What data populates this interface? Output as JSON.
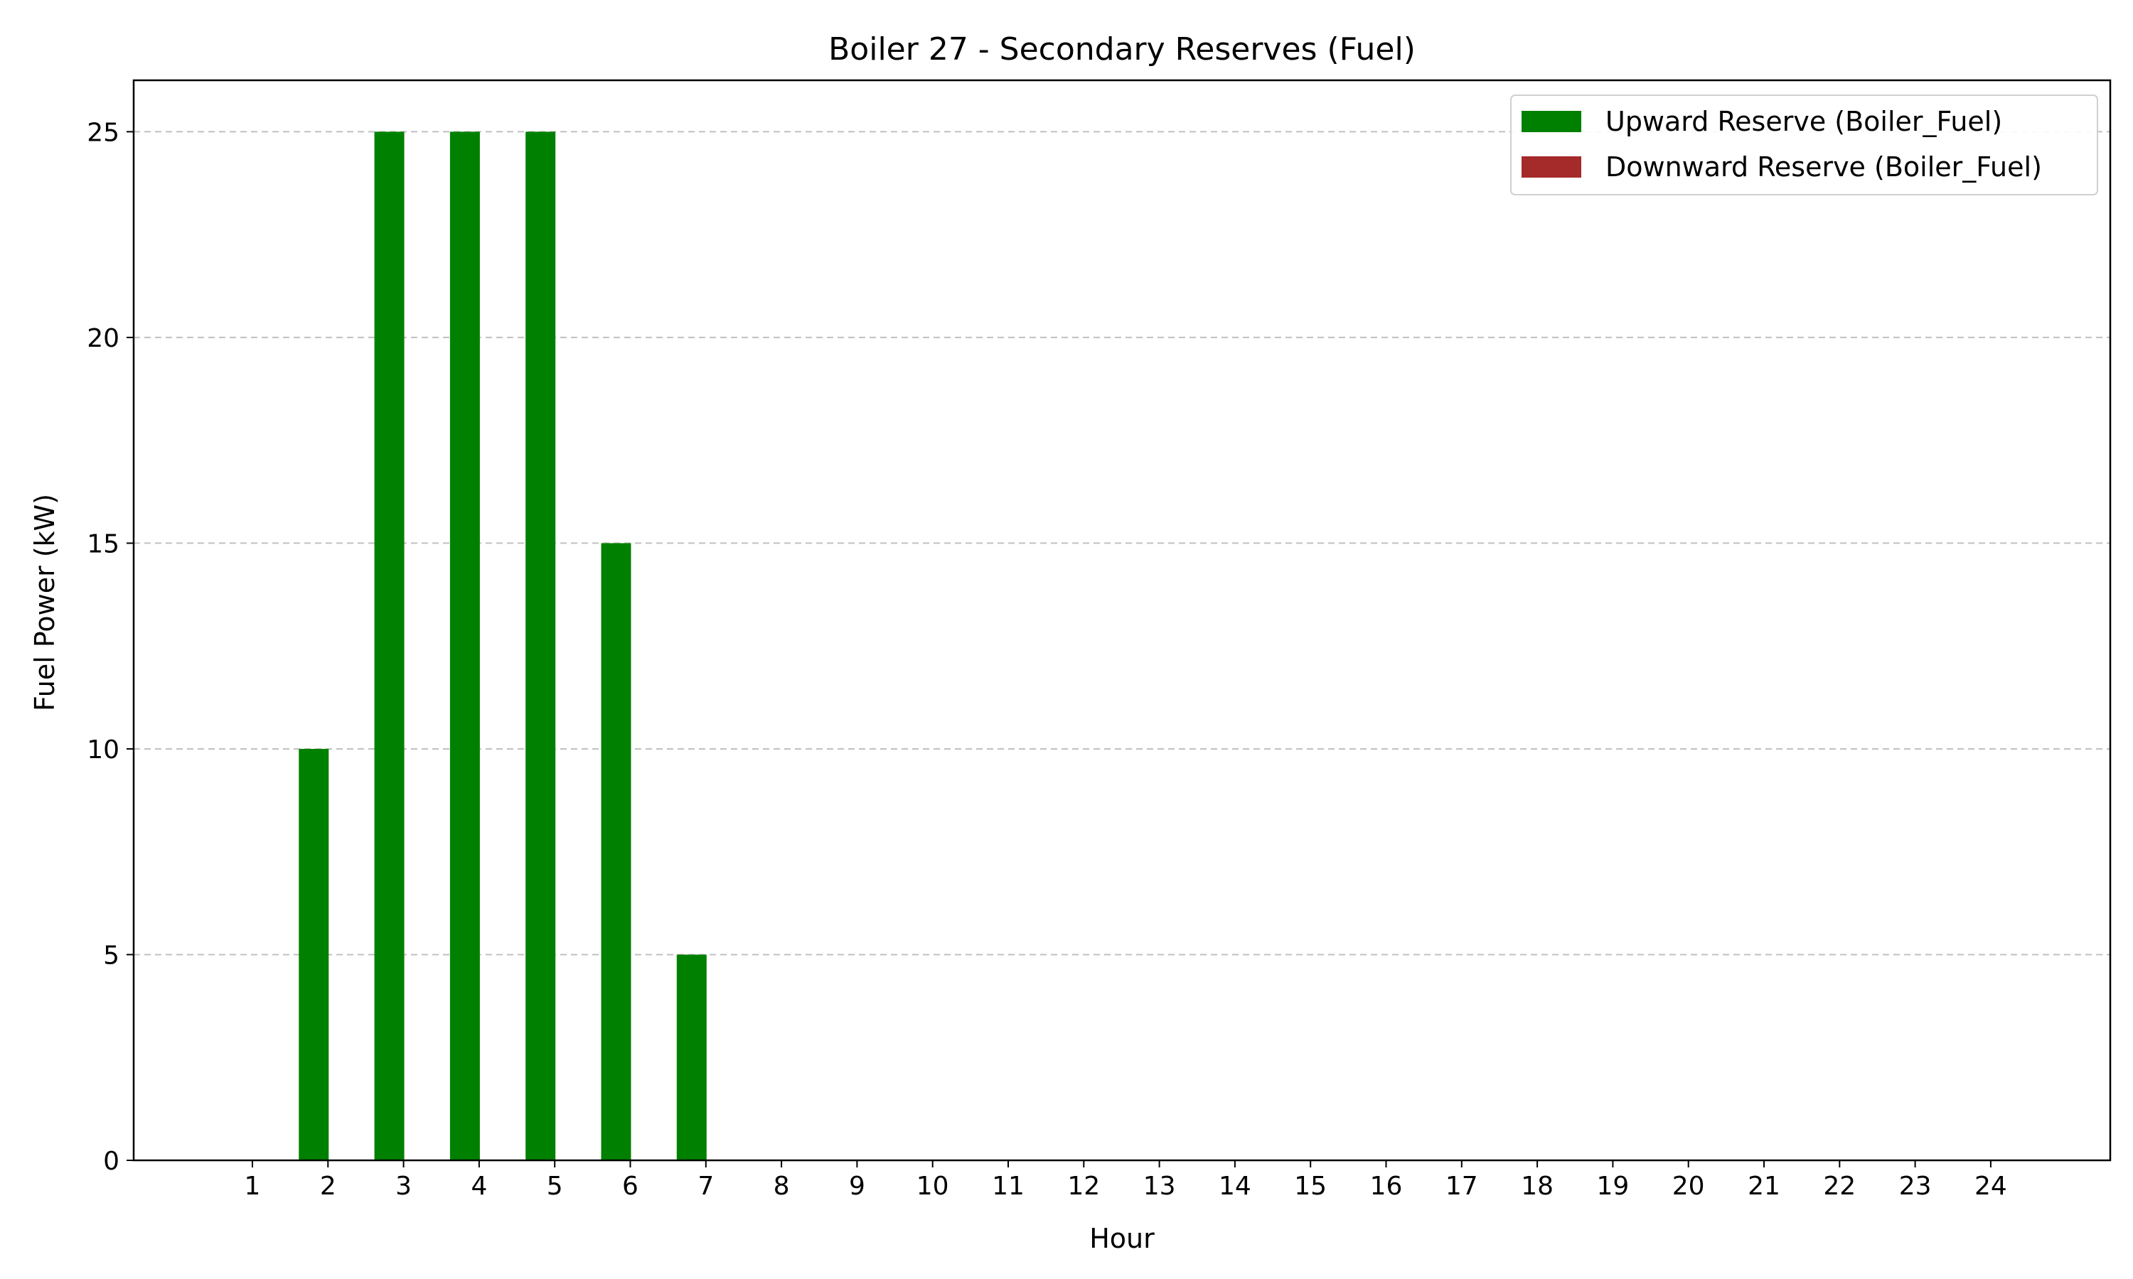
{
  "chart_data": {
    "type": "bar",
    "title": "Boiler 27 - Secondary Reserves (Fuel)",
    "xlabel": "Hour",
    "ylabel": "Fuel Power (kW)",
    "categories": [
      "1",
      "2",
      "3",
      "4",
      "5",
      "6",
      "7",
      "8",
      "9",
      "10",
      "11",
      "12",
      "13",
      "14",
      "15",
      "16",
      "17",
      "18",
      "19",
      "20",
      "21",
      "22",
      "23",
      "24"
    ],
    "series": [
      {
        "name": "Upward Reserve (Boiler_Fuel)",
        "color": "#008000",
        "values": [
          0,
          10,
          25,
          25,
          25,
          15,
          5,
          0,
          0,
          0,
          0,
          0,
          0,
          0,
          0,
          0,
          0,
          0,
          0,
          0,
          0,
          0,
          0,
          0
        ]
      },
      {
        "name": "Downward Reserve (Boiler_Fuel)",
        "color": "#a52a2a",
        "values": [
          0,
          0,
          0,
          0,
          0,
          0,
          0,
          0,
          0,
          0,
          0,
          0,
          0,
          0,
          0,
          0,
          0,
          0,
          0,
          0,
          0,
          0,
          0,
          0
        ]
      }
    ],
    "ylim": [
      0,
      26.25
    ],
    "yticks": [
      0,
      5,
      10,
      15,
      20,
      25
    ],
    "grid": "y-dashed",
    "legend_position": "top-right"
  }
}
